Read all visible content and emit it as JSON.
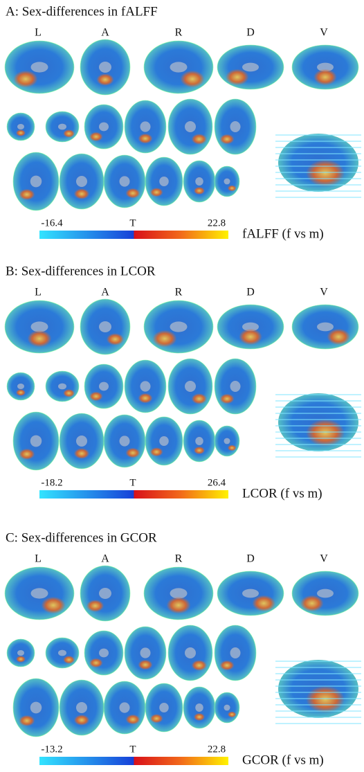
{
  "panels": [
    {
      "title": "A: Sex-differences in fALFF",
      "views": [
        "L",
        "A",
        "R",
        "D",
        "V"
      ],
      "colorbar": {
        "min": -16.4,
        "center_label": "T",
        "max": 22.8
      },
      "measure": "fALFF (f vs m)"
    },
    {
      "title": "B: Sex-differences in LCOR",
      "views": [
        "L",
        "A",
        "R",
        "D",
        "V"
      ],
      "colorbar": {
        "min": -18.2,
        "center_label": "T",
        "max": 26.4
      },
      "measure": "LCOR (f vs m)"
    },
    {
      "title": "C: Sex-differences in GCOR",
      "views": [
        "L",
        "A",
        "R",
        "D",
        "V"
      ],
      "colorbar": {
        "min": -13.2,
        "center_label": "T",
        "max": 22.8
      },
      "measure": "GCOR (f vs m)"
    }
  ]
}
